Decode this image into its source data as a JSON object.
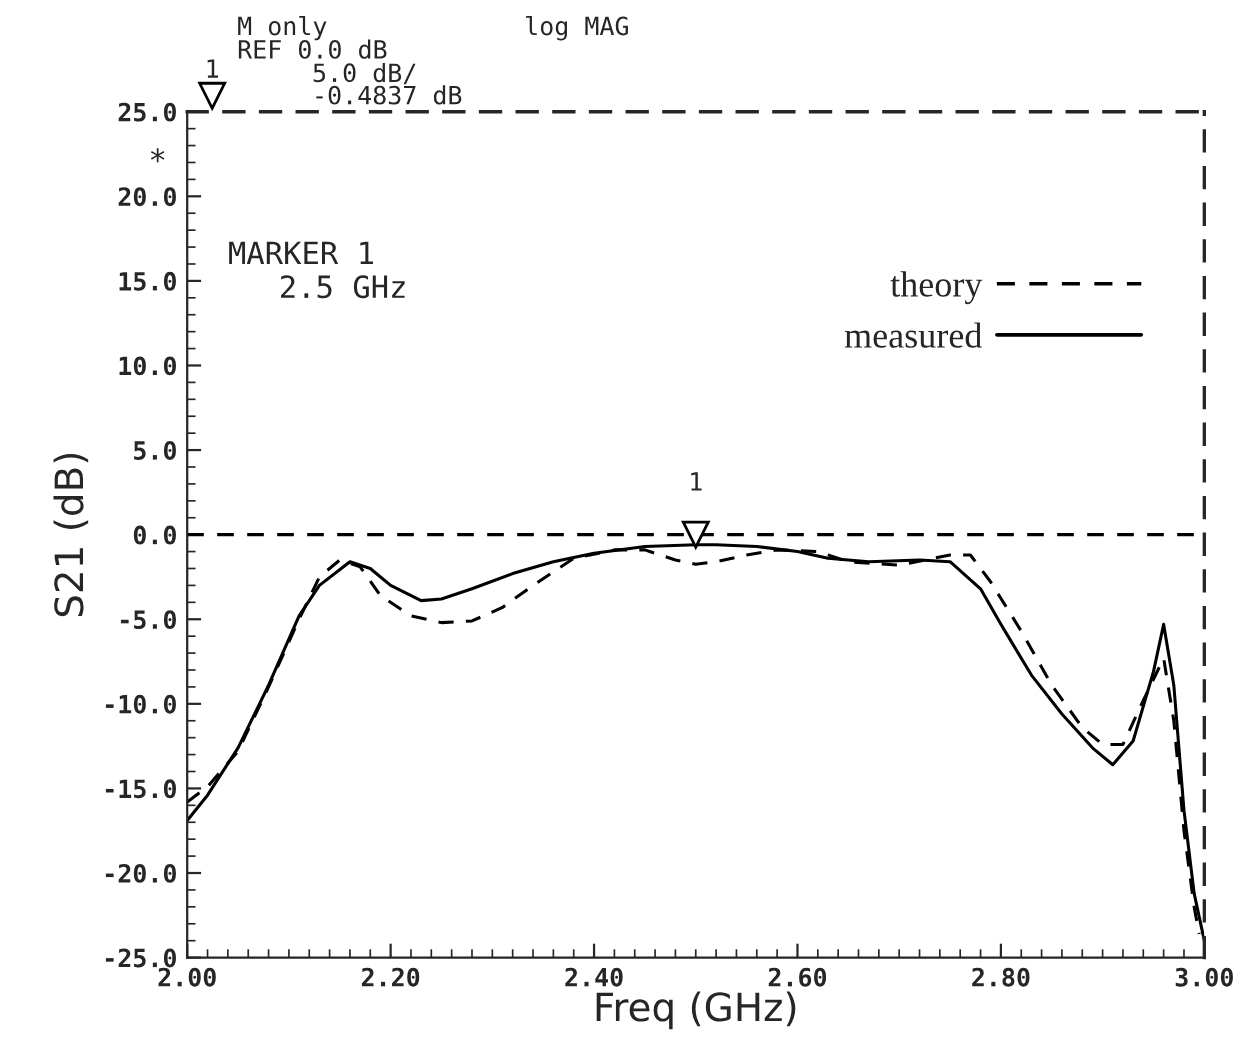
{
  "chart_data": {
    "type": "line",
    "xlabel": "Freq (GHz)",
    "ylabel": "S21 (dB)",
    "xlim": [
      2.0,
      3.0
    ],
    "ylim": [
      -25,
      25
    ],
    "xticks": [
      {
        "value": 2.0,
        "label": "2.00"
      },
      {
        "value": 2.2,
        "label": "2.20"
      },
      {
        "value": 2.4,
        "label": "2.40"
      },
      {
        "value": 2.6,
        "label": "2.60"
      },
      {
        "value": 2.8,
        "label": "2.80"
      },
      {
        "value": 3.0,
        "label": "3.00"
      }
    ],
    "yticks": [
      {
        "value": 25,
        "label": "25.0"
      },
      {
        "value": 20,
        "label": "20.0"
      },
      {
        "value": 15,
        "label": "15.0"
      },
      {
        "value": 10,
        "label": "10.0"
      },
      {
        "value": 5,
        "label": "5.0"
      },
      {
        "value": 0,
        "label": "0.0"
      },
      {
        "value": -5,
        "label": "-5.0"
      },
      {
        "value": -10,
        "label": "-10.0"
      },
      {
        "value": -15,
        "label": "-15.0"
      },
      {
        "value": -20,
        "label": "-20.0"
      },
      {
        "value": -25,
        "label": "-25.0"
      }
    ],
    "grid": false,
    "legend": "top right",
    "series": [
      {
        "name": "theory",
        "color": "#000000",
        "line_style": "dashed",
        "x": [
          2.0,
          2.02,
          2.05,
          2.08,
          2.11,
          2.13,
          2.15,
          2.17,
          2.19,
          2.22,
          2.25,
          2.28,
          2.31,
          2.34,
          2.38,
          2.42,
          2.45,
          2.48,
          2.5,
          2.52,
          2.55,
          2.58,
          2.62,
          2.65,
          2.7,
          2.75,
          2.77,
          2.79,
          2.82,
          2.85,
          2.88,
          2.9,
          2.92,
          2.94,
          2.96,
          2.97,
          2.98,
          2.99,
          2.995
        ],
        "values": [
          -15.8,
          -14.9,
          -12.8,
          -9.0,
          -5.0,
          -2.5,
          -1.5,
          -1.9,
          -3.6,
          -4.8,
          -5.2,
          -5.1,
          -4.3,
          -3.0,
          -1.4,
          -0.9,
          -0.9,
          -1.5,
          -1.75,
          -1.6,
          -1.2,
          -0.9,
          -1.0,
          -1.6,
          -1.8,
          -1.2,
          -1.2,
          -2.8,
          -5.7,
          -8.9,
          -11.4,
          -12.4,
          -12.4,
          -9.8,
          -7.3,
          -11.0,
          -17.5,
          -22.0,
          -23.6
        ]
      },
      {
        "name": "measured",
        "color": "#000000",
        "line_style": "solid",
        "x": [
          2.0,
          2.02,
          2.05,
          2.08,
          2.11,
          2.13,
          2.16,
          2.18,
          2.2,
          2.23,
          2.25,
          2.28,
          2.32,
          2.36,
          2.4,
          2.45,
          2.5,
          2.52,
          2.56,
          2.6,
          2.63,
          2.67,
          2.72,
          2.75,
          2.78,
          2.8,
          2.83,
          2.86,
          2.89,
          2.91,
          2.93,
          2.95,
          2.96,
          2.97,
          2.98,
          2.99,
          3.0
        ],
        "values": [
          -16.9,
          -15.4,
          -12.6,
          -8.9,
          -4.8,
          -3.0,
          -1.6,
          -2.0,
          -3.0,
          -3.9,
          -3.8,
          -3.2,
          -2.3,
          -1.6,
          -1.1,
          -0.7,
          -0.6,
          -0.6,
          -0.7,
          -1.0,
          -1.4,
          -1.6,
          -1.5,
          -1.6,
          -3.2,
          -5.3,
          -8.3,
          -10.6,
          -12.6,
          -13.6,
          -12.2,
          -8.1,
          -5.3,
          -8.9,
          -16.3,
          -21.2,
          -24.0
        ]
      }
    ],
    "ref_lines": [
      {
        "axis": "y",
        "value": 0,
        "line_style": "dashed",
        "color": "#000000"
      }
    ],
    "annotations": [
      "M only",
      "log MAG",
      "REF 0.0 dB",
      "5.0 dB/",
      "1",
      "-0.4837 dB",
      "*",
      "MARKER 1",
      "2.5 GHz",
      {
        "text": "1",
        "x": 2.5,
        "y": 0
      }
    ]
  }
}
